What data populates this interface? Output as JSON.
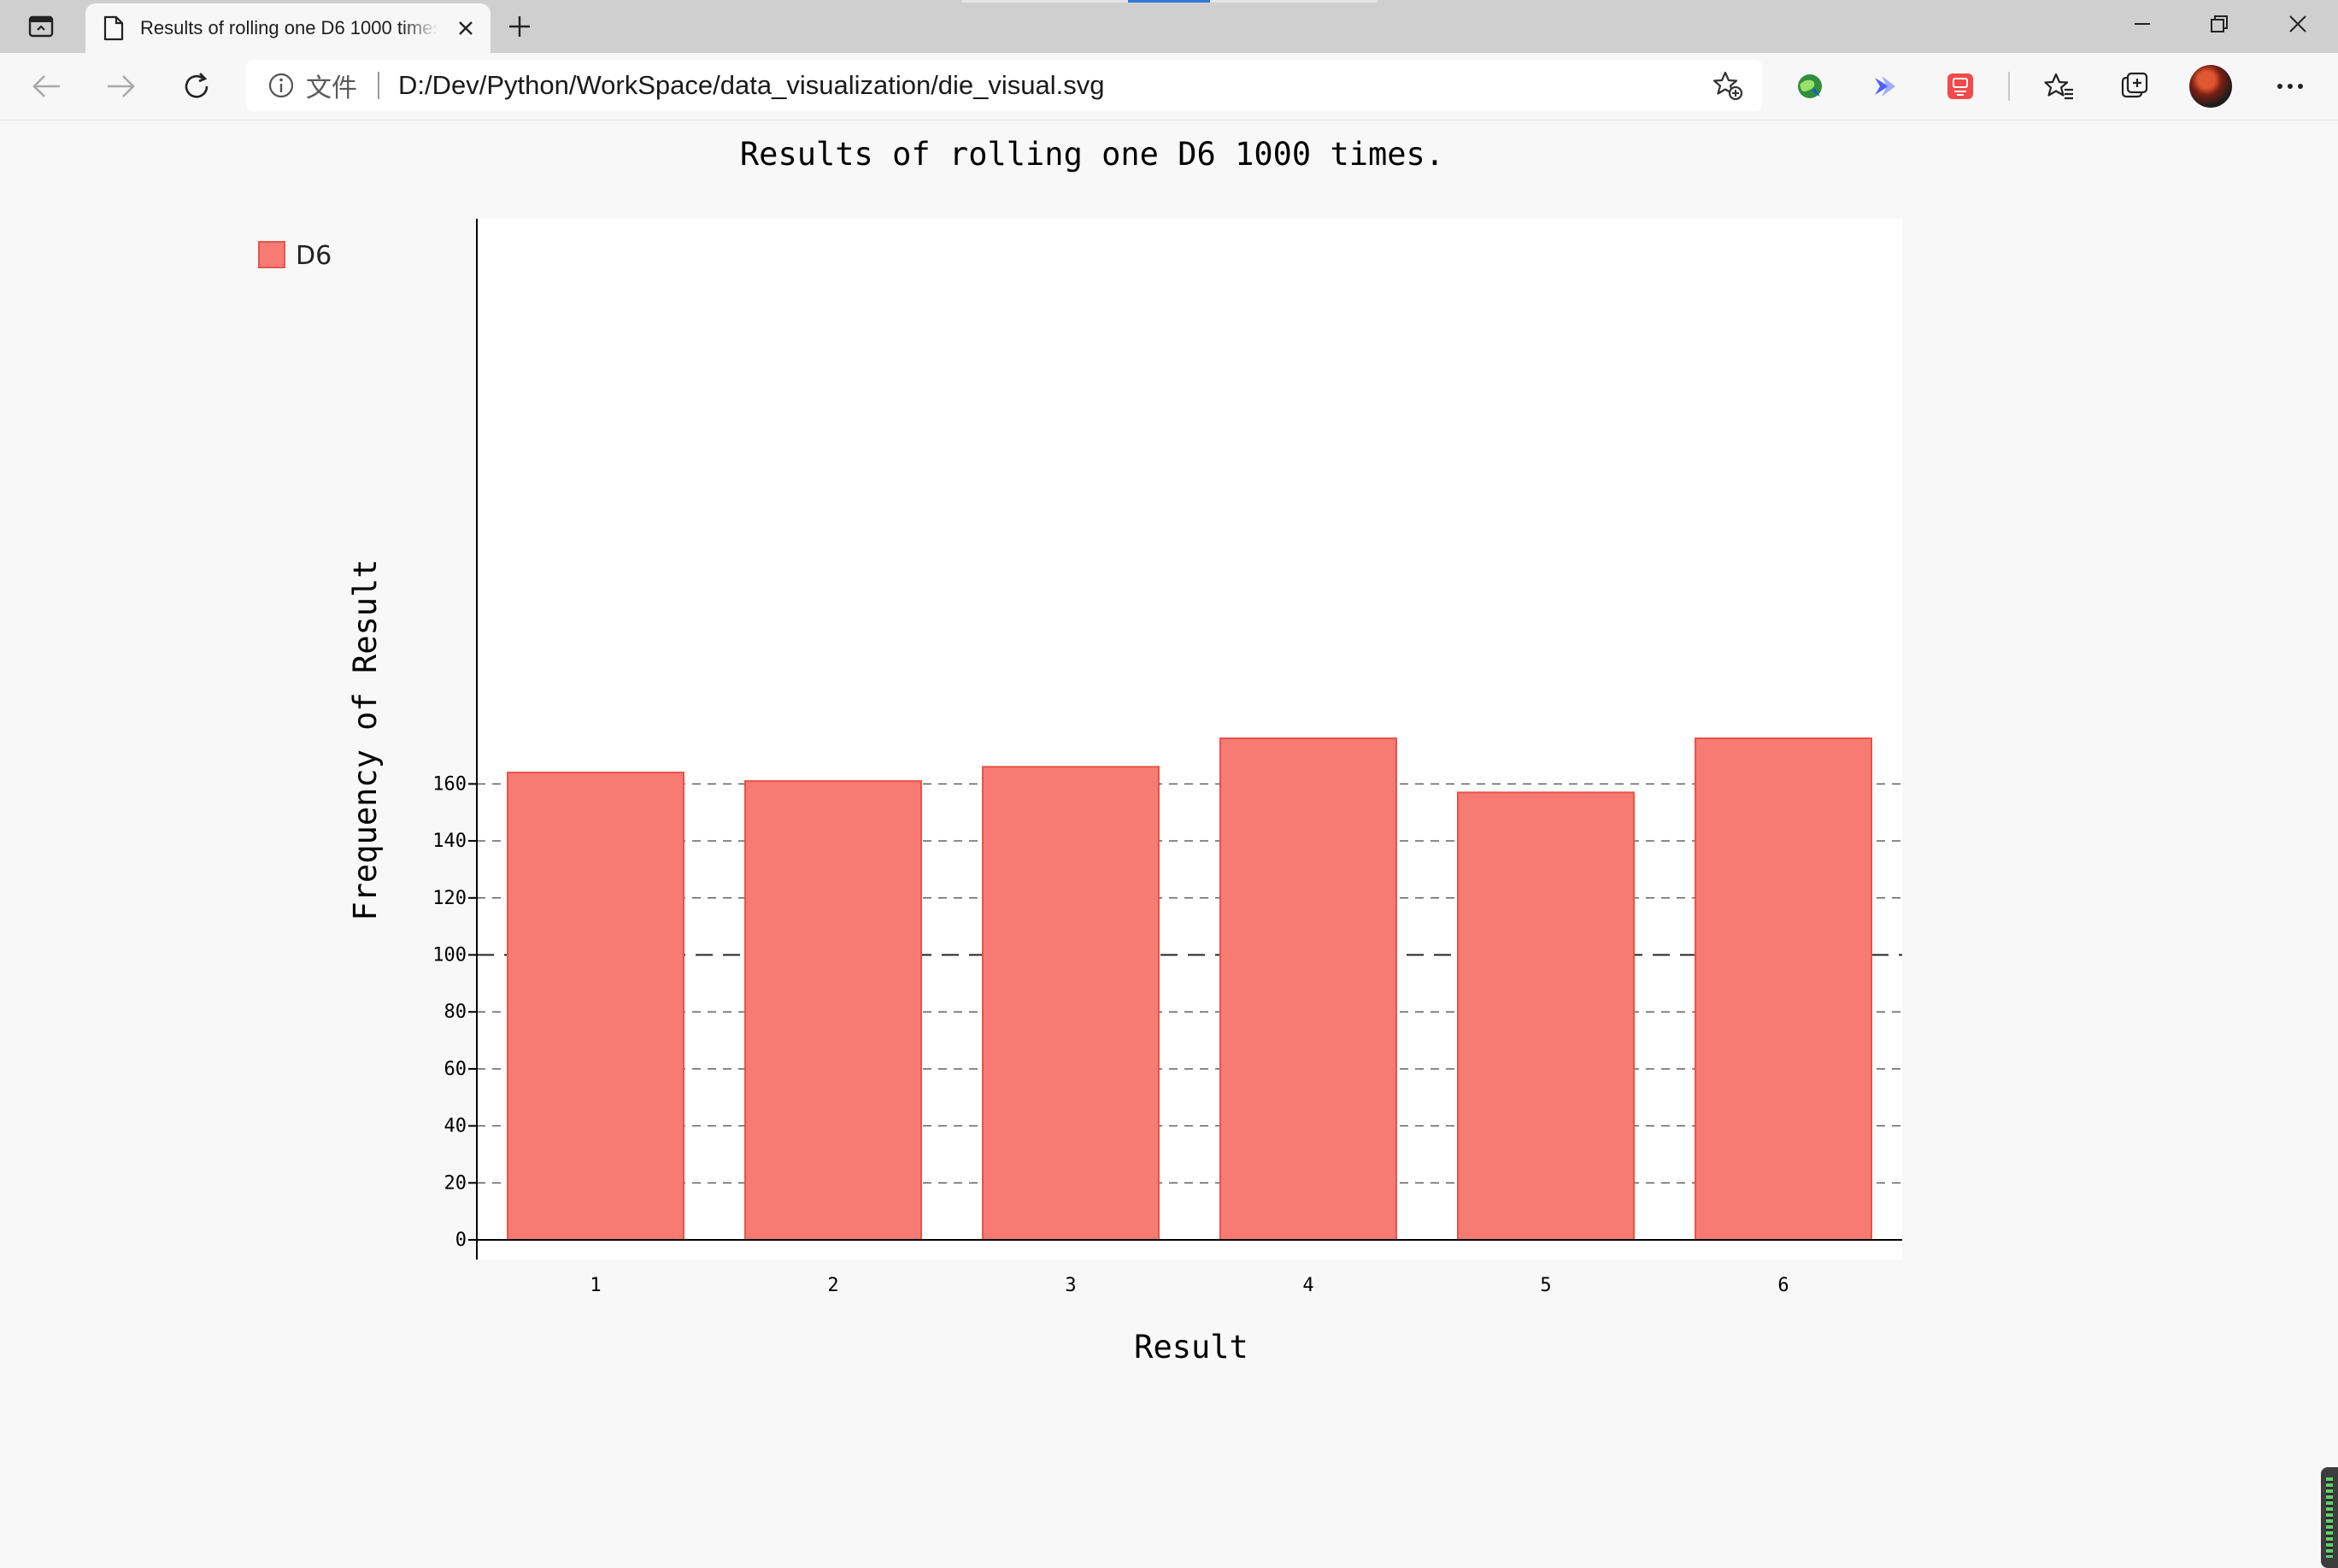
{
  "browser": {
    "tab_title": "Results of rolling one D6 1000 times.",
    "address_scheme": "文件",
    "address_url": "D:/Dev/Python/WorkSpace/data_visualization/die_visual.svg"
  },
  "chart_data": {
    "type": "bar",
    "title": "Results of rolling one D6 1000 times.",
    "xlabel": "Result",
    "ylabel": "Frequency of Result",
    "categories": [
      "1",
      "2",
      "3",
      "4",
      "5",
      "6"
    ],
    "series": [
      {
        "name": "D6",
        "values": [
          164,
          161,
          166,
          176,
          157,
          176
        ],
        "color": "#f77b72"
      }
    ],
    "yticks": [
      0,
      20,
      40,
      60,
      80,
      100,
      120,
      140,
      160
    ],
    "ylim": [
      0,
      180
    ],
    "legend": "top-left",
    "grid": "horizontal-dashed",
    "colors": {
      "bar_fill": "#f77b72",
      "bar_stroke": "#e6544a",
      "plot_bg": "#ffffff",
      "page_bg": "#f8f8f8"
    }
  }
}
